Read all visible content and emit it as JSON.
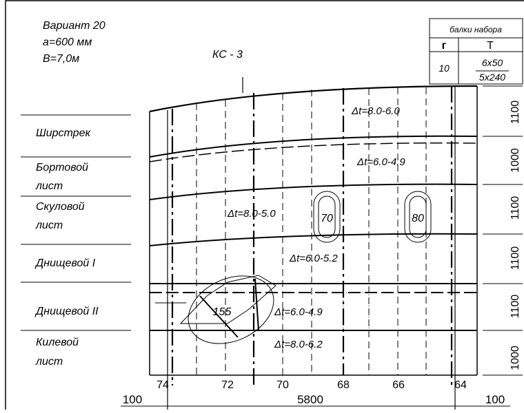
{
  "header": {
    "variant": "Вариант 20",
    "spacing": "a=600 мм",
    "breadth": "B=7,0м",
    "section": "КС - 3"
  },
  "table": {
    "title": "балки набора",
    "col1": "г",
    "col2": "Т",
    "r_value": "10",
    "t_top": "6x50",
    "t_bottom": "5x240"
  },
  "zones": [
    [
      "Ширстрек"
    ],
    [
      "Бортовой",
      "лист"
    ],
    [
      "Скуловой",
      "лист"
    ],
    [
      "Днищевой I"
    ],
    [
      "Днищевой II"
    ],
    [
      "Килевой",
      "лист"
    ]
  ],
  "wear": [
    "Δt=8.0-6.0",
    "Δt=6.0-4.9",
    "Δt=8.0-5.0",
    "Δt=6.0-5.2",
    "Δt=6.0-4.9",
    "Δt=8.0-6.2"
  ],
  "dents": [
    "70",
    "80",
    "155"
  ],
  "widths": [
    "1100",
    "1000",
    "1100",
    "1100",
    "1100",
    "1000"
  ],
  "frames": [
    "74",
    "72",
    "70",
    "68",
    "66",
    "64"
  ],
  "dimensions": [
    "100",
    "5800",
    "100"
  ]
}
